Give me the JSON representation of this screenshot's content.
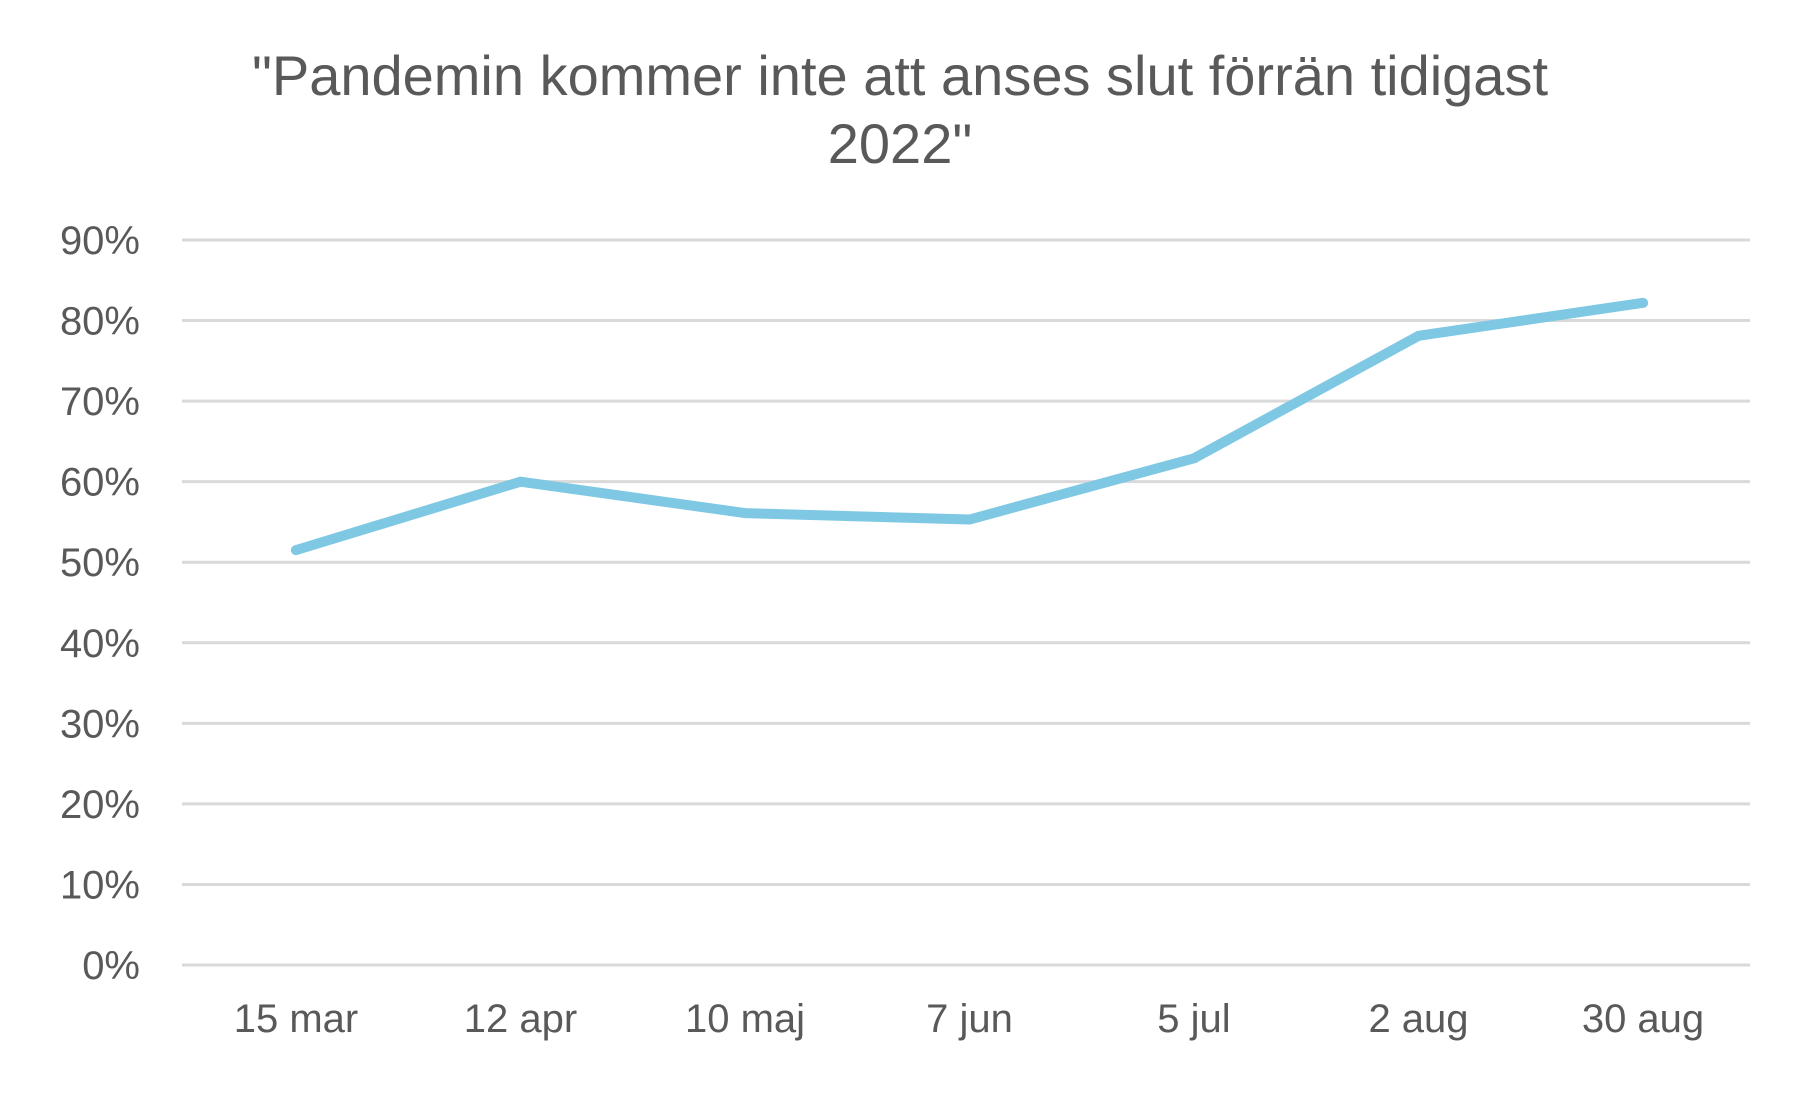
{
  "chart_data": {
    "type": "line",
    "title_lines": [
      "\"Pandemin kommer inte att anses slut förrän tidigast",
      "2022\""
    ],
    "categories": [
      "15 mar",
      "12 apr",
      "10 maj",
      "7 jun",
      "5 jul",
      "2 aug",
      "30 aug"
    ],
    "series": [
      {
        "values": [
          0.515,
          0.6,
          0.561,
          0.553,
          0.629,
          0.781,
          0.822
        ],
        "color": "#7ec8e3"
      }
    ],
    "ylim": [
      0,
      0.9
    ],
    "yticks": [
      0,
      0.1,
      0.2,
      0.3,
      0.4,
      0.5,
      0.6,
      0.7,
      0.8,
      0.9
    ],
    "ytick_labels": [
      "0%",
      "10%",
      "20%",
      "30%",
      "40%",
      "50%",
      "60%",
      "70%",
      "80%",
      "90%"
    ],
    "xlabel": "",
    "ylabel": "",
    "grid": true,
    "legend": "none"
  }
}
